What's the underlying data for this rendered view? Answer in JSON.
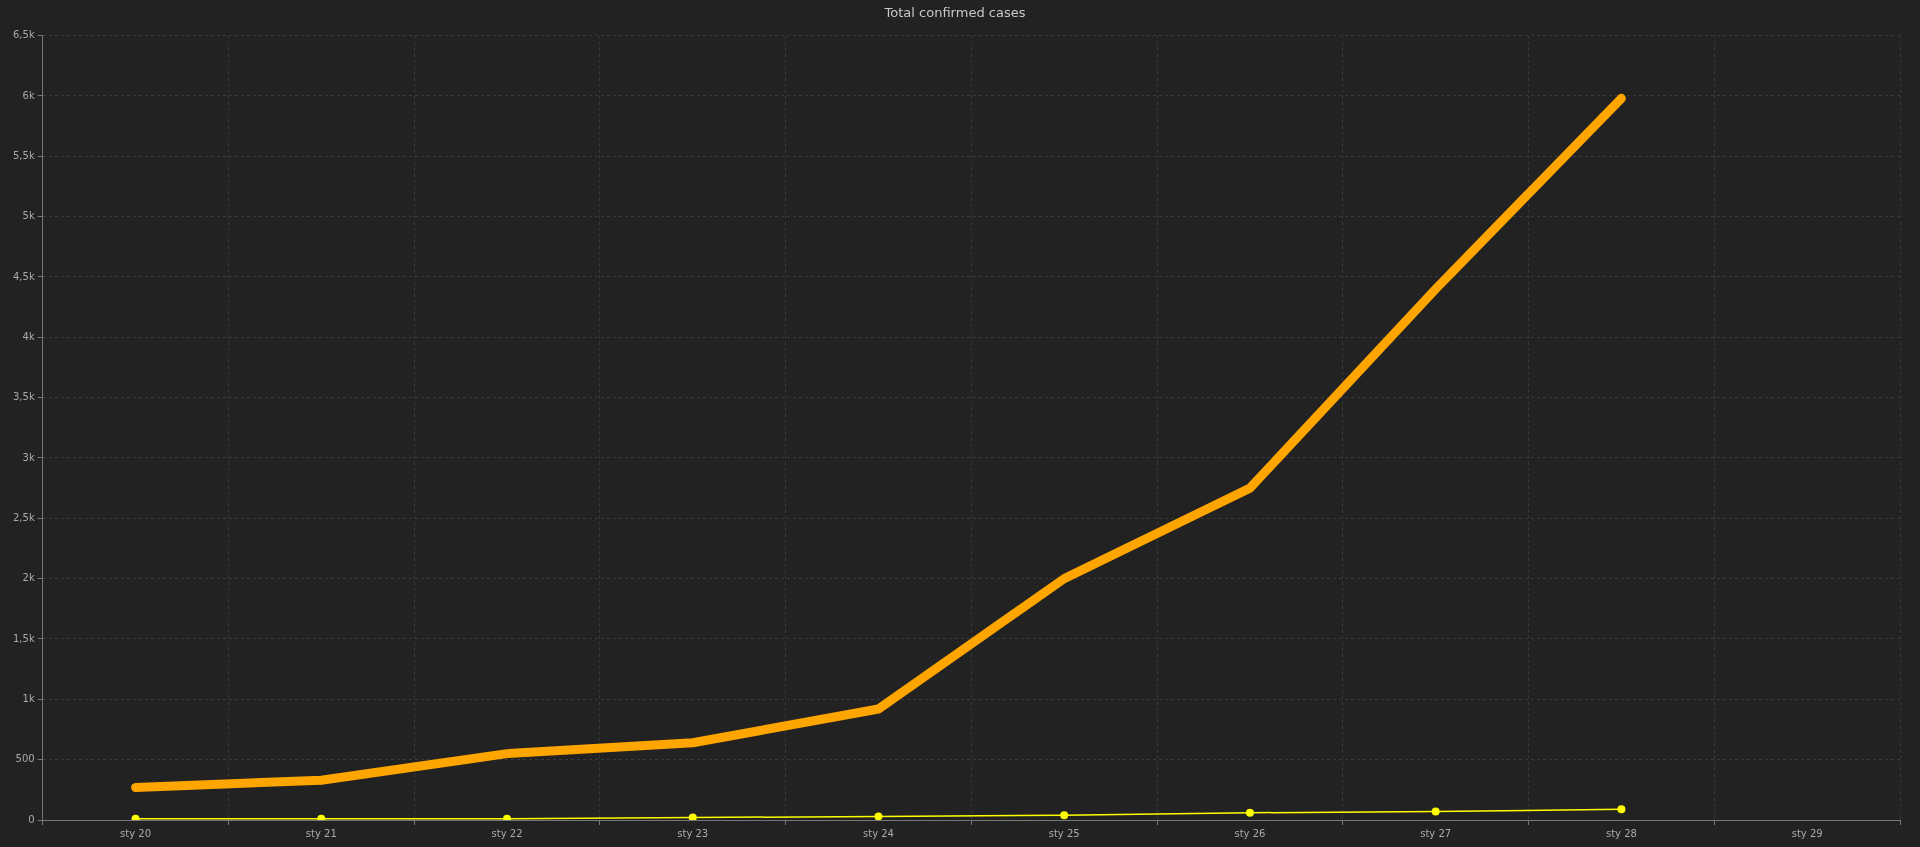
{
  "chart_data": {
    "type": "line",
    "title": "Total confirmed cases",
    "categories": [
      "sty 20",
      "sty 21",
      "sty 22",
      "sty 23",
      "sty 24",
      "sty 25",
      "sty 26",
      "sty 27",
      "sty 28",
      "sty 29"
    ],
    "series": [
      {
        "color": "#ffa500",
        "marker": "none",
        "values": [
          270,
          330,
          550,
          640,
          920,
          2000,
          2750,
          4400,
          5980,
          null
        ]
      },
      {
        "color": "#ffff00",
        "marker": "circle",
        "values": [
          10,
          10,
          10,
          20,
          30,
          40,
          60,
          70,
          90,
          null
        ]
      }
    ],
    "ylim": [
      0,
      6500
    ],
    "yticks": [
      0,
      500,
      {
        "value": 1000,
        "label": "1k"
      },
      {
        "value": 1500,
        "label": "1,5k"
      },
      {
        "value": 2000,
        "label": "2k"
      },
      {
        "value": 2500,
        "label": "2,5k"
      },
      {
        "value": 3000,
        "label": "3k"
      },
      {
        "value": 3500,
        "label": "3,5k"
      },
      {
        "value": 4000,
        "label": "4k"
      },
      {
        "value": 4500,
        "label": "4,5k"
      },
      {
        "value": 5000,
        "label": "5k"
      },
      {
        "value": 5500,
        "label": "5,5k"
      },
      {
        "value": 6000,
        "label": "6k"
      },
      {
        "value": 6500,
        "label": "6,5k"
      }
    ],
    "grid": true,
    "legend": false,
    "line_style": "solid"
  }
}
